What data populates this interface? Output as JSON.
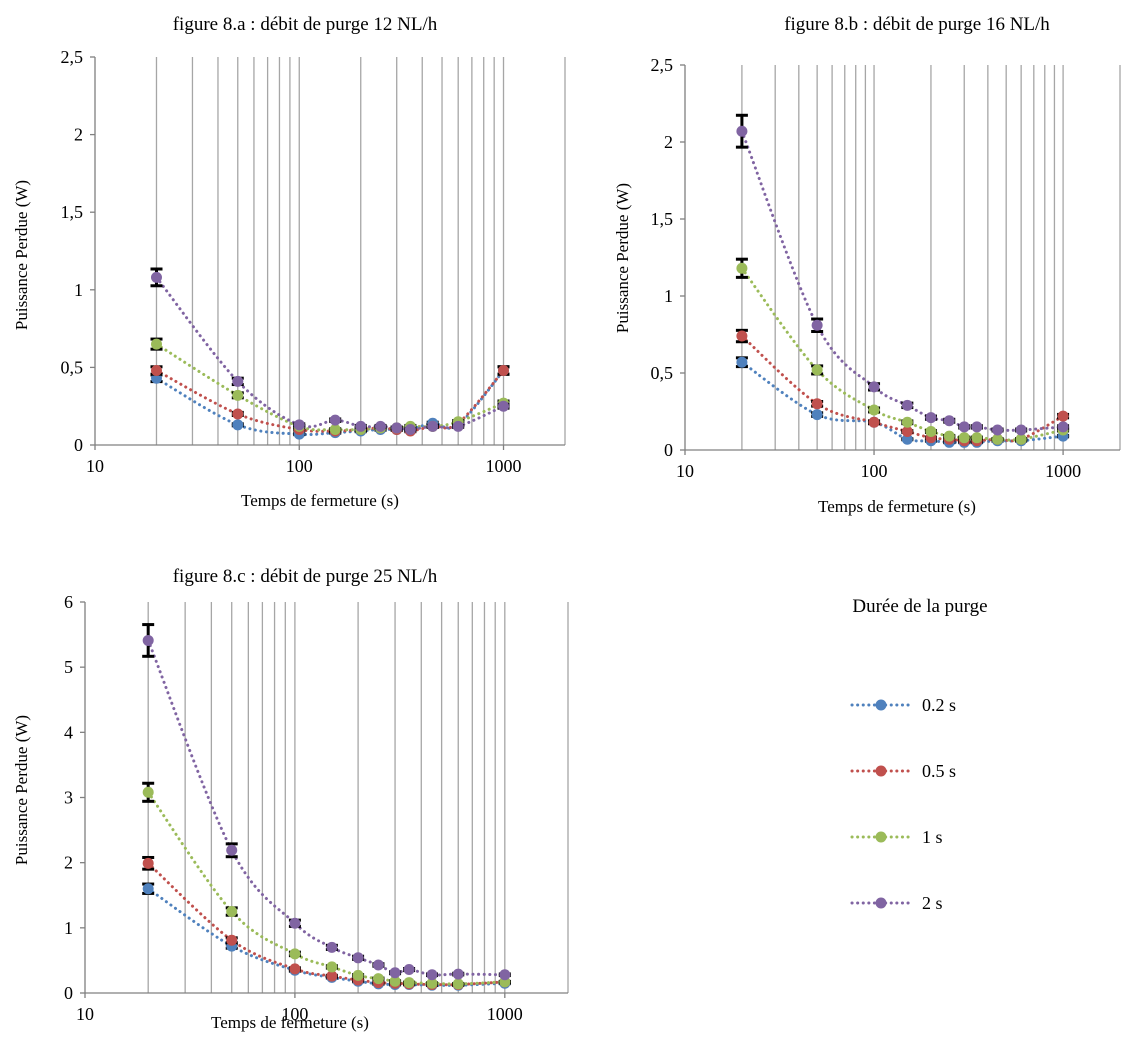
{
  "legend": {
    "title": "Durée de la purge",
    "entries": [
      {
        "label": "0.2 s",
        "color": "#4f81bd"
      },
      {
        "label": "0.5 s",
        "color": "#c0504d"
      },
      {
        "label": "1 s",
        "color": "#9bbb59"
      },
      {
        "label": "2 s",
        "color": "#8064a2"
      }
    ]
  },
  "chart_data": [
    {
      "type": "scatter",
      "title": "figure 8.a : débit de purge 12 NL/h",
      "xlabel": "Temps de fermeture (s)",
      "ylabel": "Puissance Perdue (W)",
      "xscale": "log",
      "xlim": [
        10,
        2000
      ],
      "ylim": [
        0,
        2.5
      ],
      "x_ticks": [
        10,
        100,
        1000
      ],
      "x_tick_labels": [
        "10",
        "100",
        "1000"
      ],
      "y_ticks": [
        0,
        0.5,
        1,
        1.5,
        2,
        2.5
      ],
      "y_tick_labels": [
        "0",
        "0,5",
        "1",
        "1,5",
        "2",
        "2,5"
      ],
      "grid": "vertical, minor log",
      "series": [
        {
          "name": "0.2 s",
          "color": "#4f81bd",
          "x": [
            20,
            50,
            100,
            150,
            200,
            250,
            300,
            350,
            450,
            600,
            1000
          ],
          "y": [
            0.43,
            0.13,
            0.07,
            0.08,
            0.09,
            0.1,
            0.1,
            0.1,
            0.14,
            0.13,
            0.48
          ]
        },
        {
          "name": "0.5 s",
          "color": "#c0504d",
          "x": [
            20,
            50,
            100,
            150,
            200,
            250,
            300,
            350,
            450,
            600,
            1000
          ],
          "y": [
            0.48,
            0.2,
            0.1,
            0.09,
            0.1,
            0.11,
            0.1,
            0.09,
            0.12,
            0.14,
            0.48
          ]
        },
        {
          "name": "1 s",
          "color": "#9bbb59",
          "x": [
            20,
            50,
            100,
            150,
            200,
            250,
            300,
            350,
            450,
            600,
            1000
          ],
          "y": [
            0.65,
            0.32,
            0.12,
            0.1,
            0.1,
            0.11,
            0.11,
            0.12,
            0.12,
            0.15,
            0.27
          ]
        },
        {
          "name": "2 s",
          "color": "#8064a2",
          "x": [
            20,
            50,
            100,
            150,
            200,
            250,
            300,
            350,
            450,
            600,
            1000
          ],
          "y": [
            1.08,
            0.41,
            0.13,
            0.16,
            0.12,
            0.12,
            0.11,
            0.1,
            0.12,
            0.12,
            0.25
          ]
        }
      ]
    },
    {
      "type": "scatter",
      "title": "figure 8.b : débit de purge 16 NL/h",
      "xlabel": "Temps de fermeture (s)",
      "ylabel": "Puissance Perdue (W)",
      "xscale": "log",
      "xlim": [
        10,
        2000
      ],
      "ylim": [
        0,
        2.5
      ],
      "x_ticks": [
        10,
        100,
        1000
      ],
      "x_tick_labels": [
        "10",
        "100",
        "1000"
      ],
      "y_ticks": [
        0,
        0.5,
        1,
        1.5,
        2,
        2.5
      ],
      "y_tick_labels": [
        "0",
        "0,5",
        "1",
        "1,5",
        "2",
        "2,5"
      ],
      "grid": "vertical, minor log",
      "series": [
        {
          "name": "0.2 s",
          "color": "#4f81bd",
          "x": [
            20,
            50,
            100,
            150,
            200,
            250,
            300,
            350,
            450,
            600,
            1000
          ],
          "y": [
            0.57,
            0.23,
            0.18,
            0.07,
            0.06,
            0.05,
            0.05,
            0.05,
            0.06,
            0.06,
            0.09
          ]
        },
        {
          "name": "0.5 s",
          "color": "#c0504d",
          "x": [
            20,
            50,
            100,
            150,
            200,
            250,
            300,
            350,
            450,
            600,
            1000
          ],
          "y": [
            0.74,
            0.3,
            0.18,
            0.12,
            0.08,
            0.07,
            0.06,
            0.06,
            0.07,
            0.07,
            0.22
          ]
        },
        {
          "name": "1 s",
          "color": "#9bbb59",
          "x": [
            20,
            50,
            100,
            150,
            200,
            250,
            300,
            350,
            450,
            600,
            1000
          ],
          "y": [
            1.18,
            0.52,
            0.26,
            0.18,
            0.12,
            0.09,
            0.08,
            0.08,
            0.07,
            0.07,
            0.13
          ]
        },
        {
          "name": "2 s",
          "color": "#8064a2",
          "x": [
            20,
            50,
            100,
            150,
            200,
            250,
            300,
            350,
            450,
            600,
            1000
          ],
          "y": [
            2.07,
            0.81,
            0.41,
            0.29,
            0.21,
            0.19,
            0.15,
            0.15,
            0.13,
            0.13,
            0.15
          ]
        }
      ]
    },
    {
      "type": "scatter",
      "title": "figure 8.c : débit de purge 25 NL/h",
      "xlabel": "Temps de fermeture (s)",
      "ylabel": "Puissance Perdue (W)",
      "xscale": "log",
      "xlim": [
        10,
        2000
      ],
      "ylim": [
        0,
        6
      ],
      "x_ticks": [
        10,
        100,
        1000
      ],
      "x_tick_labels": [
        "10",
        "100",
        "1000"
      ],
      "y_ticks": [
        0,
        1,
        2,
        3,
        4,
        5,
        6
      ],
      "y_tick_labels": [
        "0",
        "1",
        "2",
        "3",
        "4",
        "5",
        "6"
      ],
      "grid": "vertical, minor log",
      "series": [
        {
          "name": "0.2 s",
          "color": "#4f81bd",
          "x": [
            20,
            50,
            100,
            150,
            200,
            250,
            300,
            350,
            450,
            600,
            1000
          ],
          "y": [
            1.6,
            0.72,
            0.35,
            0.24,
            0.18,
            0.14,
            0.13,
            0.13,
            0.12,
            0.12,
            0.15
          ]
        },
        {
          "name": "0.5 s",
          "color": "#c0504d",
          "x": [
            20,
            50,
            100,
            150,
            200,
            250,
            300,
            350,
            450,
            600,
            1000
          ],
          "y": [
            1.99,
            0.81,
            0.37,
            0.26,
            0.2,
            0.16,
            0.15,
            0.14,
            0.13,
            0.13,
            0.17
          ]
        },
        {
          "name": "1 s",
          "color": "#9bbb59",
          "x": [
            20,
            50,
            100,
            150,
            200,
            250,
            300,
            350,
            450,
            600,
            1000
          ],
          "y": [
            3.08,
            1.25,
            0.6,
            0.4,
            0.27,
            0.22,
            0.18,
            0.16,
            0.15,
            0.14,
            0.17
          ]
        },
        {
          "name": "2 s",
          "color": "#8064a2",
          "x": [
            20,
            50,
            100,
            150,
            200,
            250,
            300,
            350,
            450,
            600,
            1000
          ],
          "y": [
            5.41,
            2.19,
            1.07,
            0.7,
            0.54,
            0.43,
            0.31,
            0.36,
            0.28,
            0.29,
            0.28
          ]
        }
      ]
    }
  ]
}
